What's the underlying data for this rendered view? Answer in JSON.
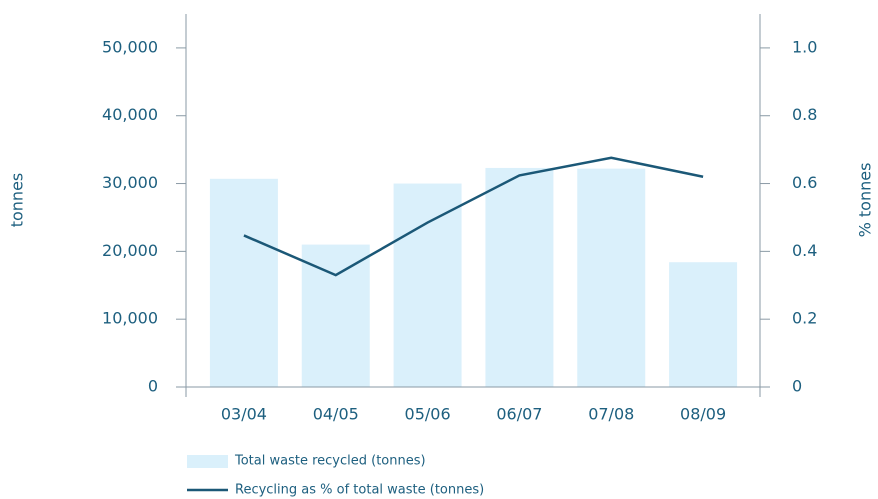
{
  "chart_data": {
    "type": "bar_line",
    "categories": [
      "03/04",
      "04/05",
      "05/06",
      "06/07",
      "07/08",
      "08/09"
    ],
    "series": [
      {
        "name": "Total waste recycled (tonnes)",
        "type": "bar",
        "color": "#daf0fb",
        "values": [
          30700,
          21000,
          30000,
          32300,
          32200,
          18400
        ]
      },
      {
        "name": "Recycling as % of total waste (tonnes)",
        "type": "line",
        "axis": "y2",
        "color": "#1b5877",
        "values": [
          0.447,
          0.33,
          0.485,
          0.624,
          0.676,
          0.62
        ]
      }
    ],
    "ylabel": "tonnes",
    "y2label": "% tonnes",
    "ylim": [
      0,
      55000
    ],
    "yticks": [
      0,
      {
        "value": 10000,
        "label": "10,000"
      },
      {
        "value": 20000,
        "label": "20,000"
      },
      {
        "value": 30000,
        "label": "30,000"
      },
      {
        "value": 40000,
        "label": "40,000"
      },
      {
        "value": 50000,
        "label": "50,000"
      }
    ],
    "y2lim": [
      0,
      1.1
    ],
    "y2ticks": [
      0,
      0.2,
      0.4,
      0.6,
      0.8,
      {
        "value": 1,
        "label": "1.0"
      }
    ]
  }
}
